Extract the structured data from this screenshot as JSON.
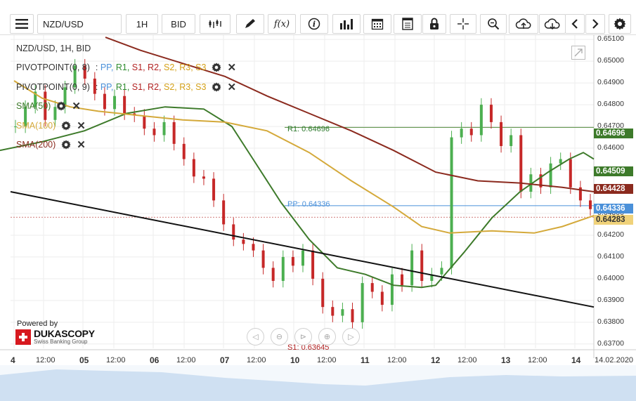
{
  "toolbar": {
    "symbol": "NZD/USD",
    "timeframe": "1H",
    "price_side": "BID",
    "icons": [
      "menu-icon",
      "candles-icon",
      "pencil-icon",
      "fx-icon",
      "info-icon",
      "bar-chart-icon",
      "calendar-icon",
      "report-icon",
      "lock-icon",
      "crosshair-icon",
      "zoom-icon",
      "upload-cloud-icon",
      "download-cloud-icon",
      "chevron-left-icon",
      "chevron-right-icon",
      "gear-icon"
    ]
  },
  "chart_header": "NZD/USD, 1H, BID",
  "indicators": [
    {
      "name": "PIVOTPOINT",
      "params": " (0, 8)",
      "levels": [
        "PP",
        "R1",
        "S1",
        "R2",
        "S2",
        "R3",
        "S3"
      ],
      "color": "#333333"
    },
    {
      "name": "PIVOTPOINT",
      "params": " (0, 9)",
      "levels": [
        "PP",
        "R1",
        "S1",
        "R2",
        "S2",
        "R3",
        "S3"
      ],
      "color": "#333333"
    },
    {
      "name": "SMA",
      "params": " (50)",
      "color": "#3d7a2a"
    },
    {
      "name": "SMA",
      "params": " (100)",
      "color": "#d4a93a"
    },
    {
      "name": "SMA",
      "params": " (200)",
      "color": "#8b2a1e"
    }
  ],
  "level_colors": {
    "PP": "#4a90d9",
    "R1": "#2e8b2e",
    "S1": "#b22222",
    "R2": "#b22222",
    "S2": "#d4a017",
    "R3": "#d4a017",
    "S3": "#d4a017"
  },
  "pivot_labels": {
    "r1": "R1: 0.64696",
    "pp": "PP: 0.64336",
    "s1": "S1: 0.63645"
  },
  "price_tags": [
    {
      "value": "0.64696",
      "bg": "#3d7a2a",
      "fg": "#ffffff"
    },
    {
      "value": "0.64509",
      "bg": "#3d7a2a",
      "fg": "#ffffff"
    },
    {
      "value": "0.64428",
      "bg": "#8b2a1e",
      "fg": "#ffffff"
    },
    {
      "value": "0.64336",
      "bg": "#4a90d9",
      "fg": "#ffffff"
    },
    {
      "value": "0.64283",
      "bg": "#f0d27a",
      "fg": "#333333"
    }
  ],
  "powered_by": {
    "text": "Powered by",
    "brand": "DUKASCOPY",
    "tagline": "Swiss Banking Group"
  },
  "chart_data": {
    "type": "candlestick",
    "title": "NZD/USD, 1H, BID",
    "ylim": [
      0.6368,
      0.6512
    ],
    "y_ticks": [
      "0.65100",
      "0.65000",
      "0.64900",
      "0.64800",
      "0.64700",
      "0.64600",
      "0.64500",
      "0.64400",
      "0.64300",
      "0.64200",
      "0.64100",
      "0.64000",
      "0.63900",
      "0.63800",
      "0.63700"
    ],
    "x_ticks": [
      "4",
      "12:00",
      "05",
      "12:00",
      "06",
      "12:00",
      "07",
      "12:00",
      "10",
      "12:00",
      "11",
      "12:00",
      "12",
      "12:00",
      "13",
      "12:00",
      "14",
      "14.02.2020"
    ],
    "horizontal_levels": {
      "R1": 0.64696,
      "PP": 0.64336,
      "S1": 0.63645,
      "last_price": 0.64283
    },
    "series": [
      {
        "name": "SMA (50)",
        "points": [
          [
            0,
            0.6459
          ],
          [
            60,
            0.6463
          ],
          [
            120,
            0.6468
          ],
          [
            180,
            0.6476
          ],
          [
            235,
            0.6479
          ],
          [
            290,
            0.6478
          ],
          [
            330,
            0.647
          ],
          [
            360,
            0.6455
          ],
          [
            400,
            0.6435
          ],
          [
            440,
            0.6418
          ],
          [
            480,
            0.6405
          ],
          [
            520,
            0.6402
          ],
          [
            560,
            0.6397
          ],
          [
            600,
            0.6396
          ],
          [
            620,
            0.6397
          ],
          [
            660,
            0.6412
          ],
          [
            700,
            0.6428
          ],
          [
            740,
            0.644
          ],
          [
            780,
            0.6449
          ],
          [
            810,
            0.6455
          ],
          [
            830,
            0.6458
          ],
          [
            845,
            0.6455
          ]
        ]
      },
      {
        "name": "SMA (100)",
        "points": [
          [
            20,
            0.6491
          ],
          [
            60,
            0.6483
          ],
          [
            100,
            0.6479
          ],
          [
            140,
            0.6477
          ],
          [
            200,
            0.6475
          ],
          [
            260,
            0.6473
          ],
          [
            320,
            0.6472
          ],
          [
            380,
            0.6468
          ],
          [
            440,
            0.6458
          ],
          [
            500,
            0.6445
          ],
          [
            560,
            0.6433
          ],
          [
            600,
            0.6424
          ],
          [
            640,
            0.6421
          ],
          [
            700,
            0.6422
          ],
          [
            760,
            0.6421
          ],
          [
            800,
            0.6424
          ],
          [
            845,
            0.6429
          ]
        ]
      },
      {
        "name": "SMA (200)",
        "points": [
          [
            150,
            0.6511
          ],
          [
            200,
            0.6505
          ],
          [
            260,
            0.6499
          ],
          [
            320,
            0.6493
          ],
          [
            380,
            0.6484
          ],
          [
            440,
            0.6476
          ],
          [
            500,
            0.6468
          ],
          [
            560,
            0.6459
          ],
          [
            620,
            0.6449
          ],
          [
            680,
            0.6445
          ],
          [
            740,
            0.6444
          ],
          [
            800,
            0.6442
          ],
          [
            845,
            0.644
          ]
        ]
      },
      {
        "name": "trendline",
        "points": [
          [
            15,
            0.644
          ],
          [
            845,
            0.6387
          ]
        ]
      }
    ],
    "candles": [
      0.647,
      0.6479,
      0.6486,
      0.6473,
      0.6479,
      0.6488,
      0.6498,
      0.6492,
      0.6485,
      0.6478,
      0.6484,
      0.6476,
      0.6475,
      0.6469,
      0.6466,
      0.6472,
      0.6462,
      0.6455,
      0.6447,
      0.6446,
      0.6436,
      0.6425,
      0.6418,
      0.6416,
      0.6413,
      0.6405,
      0.6399,
      0.641,
      0.6406,
      0.6413,
      0.64,
      0.6387,
      0.6383,
      0.6386,
      0.638,
      0.6398,
      0.6394,
      0.6388,
      0.6402,
      0.6397,
      0.6413,
      0.6399,
      0.6402,
      0.6405,
      0.6465,
      0.6469,
      0.6466,
      0.648,
      0.6472,
      0.6461,
      0.6466,
      0.644,
      0.6448,
      0.6442,
      0.6453,
      0.6455,
      0.6442,
      0.6436,
      0.6432
    ]
  }
}
